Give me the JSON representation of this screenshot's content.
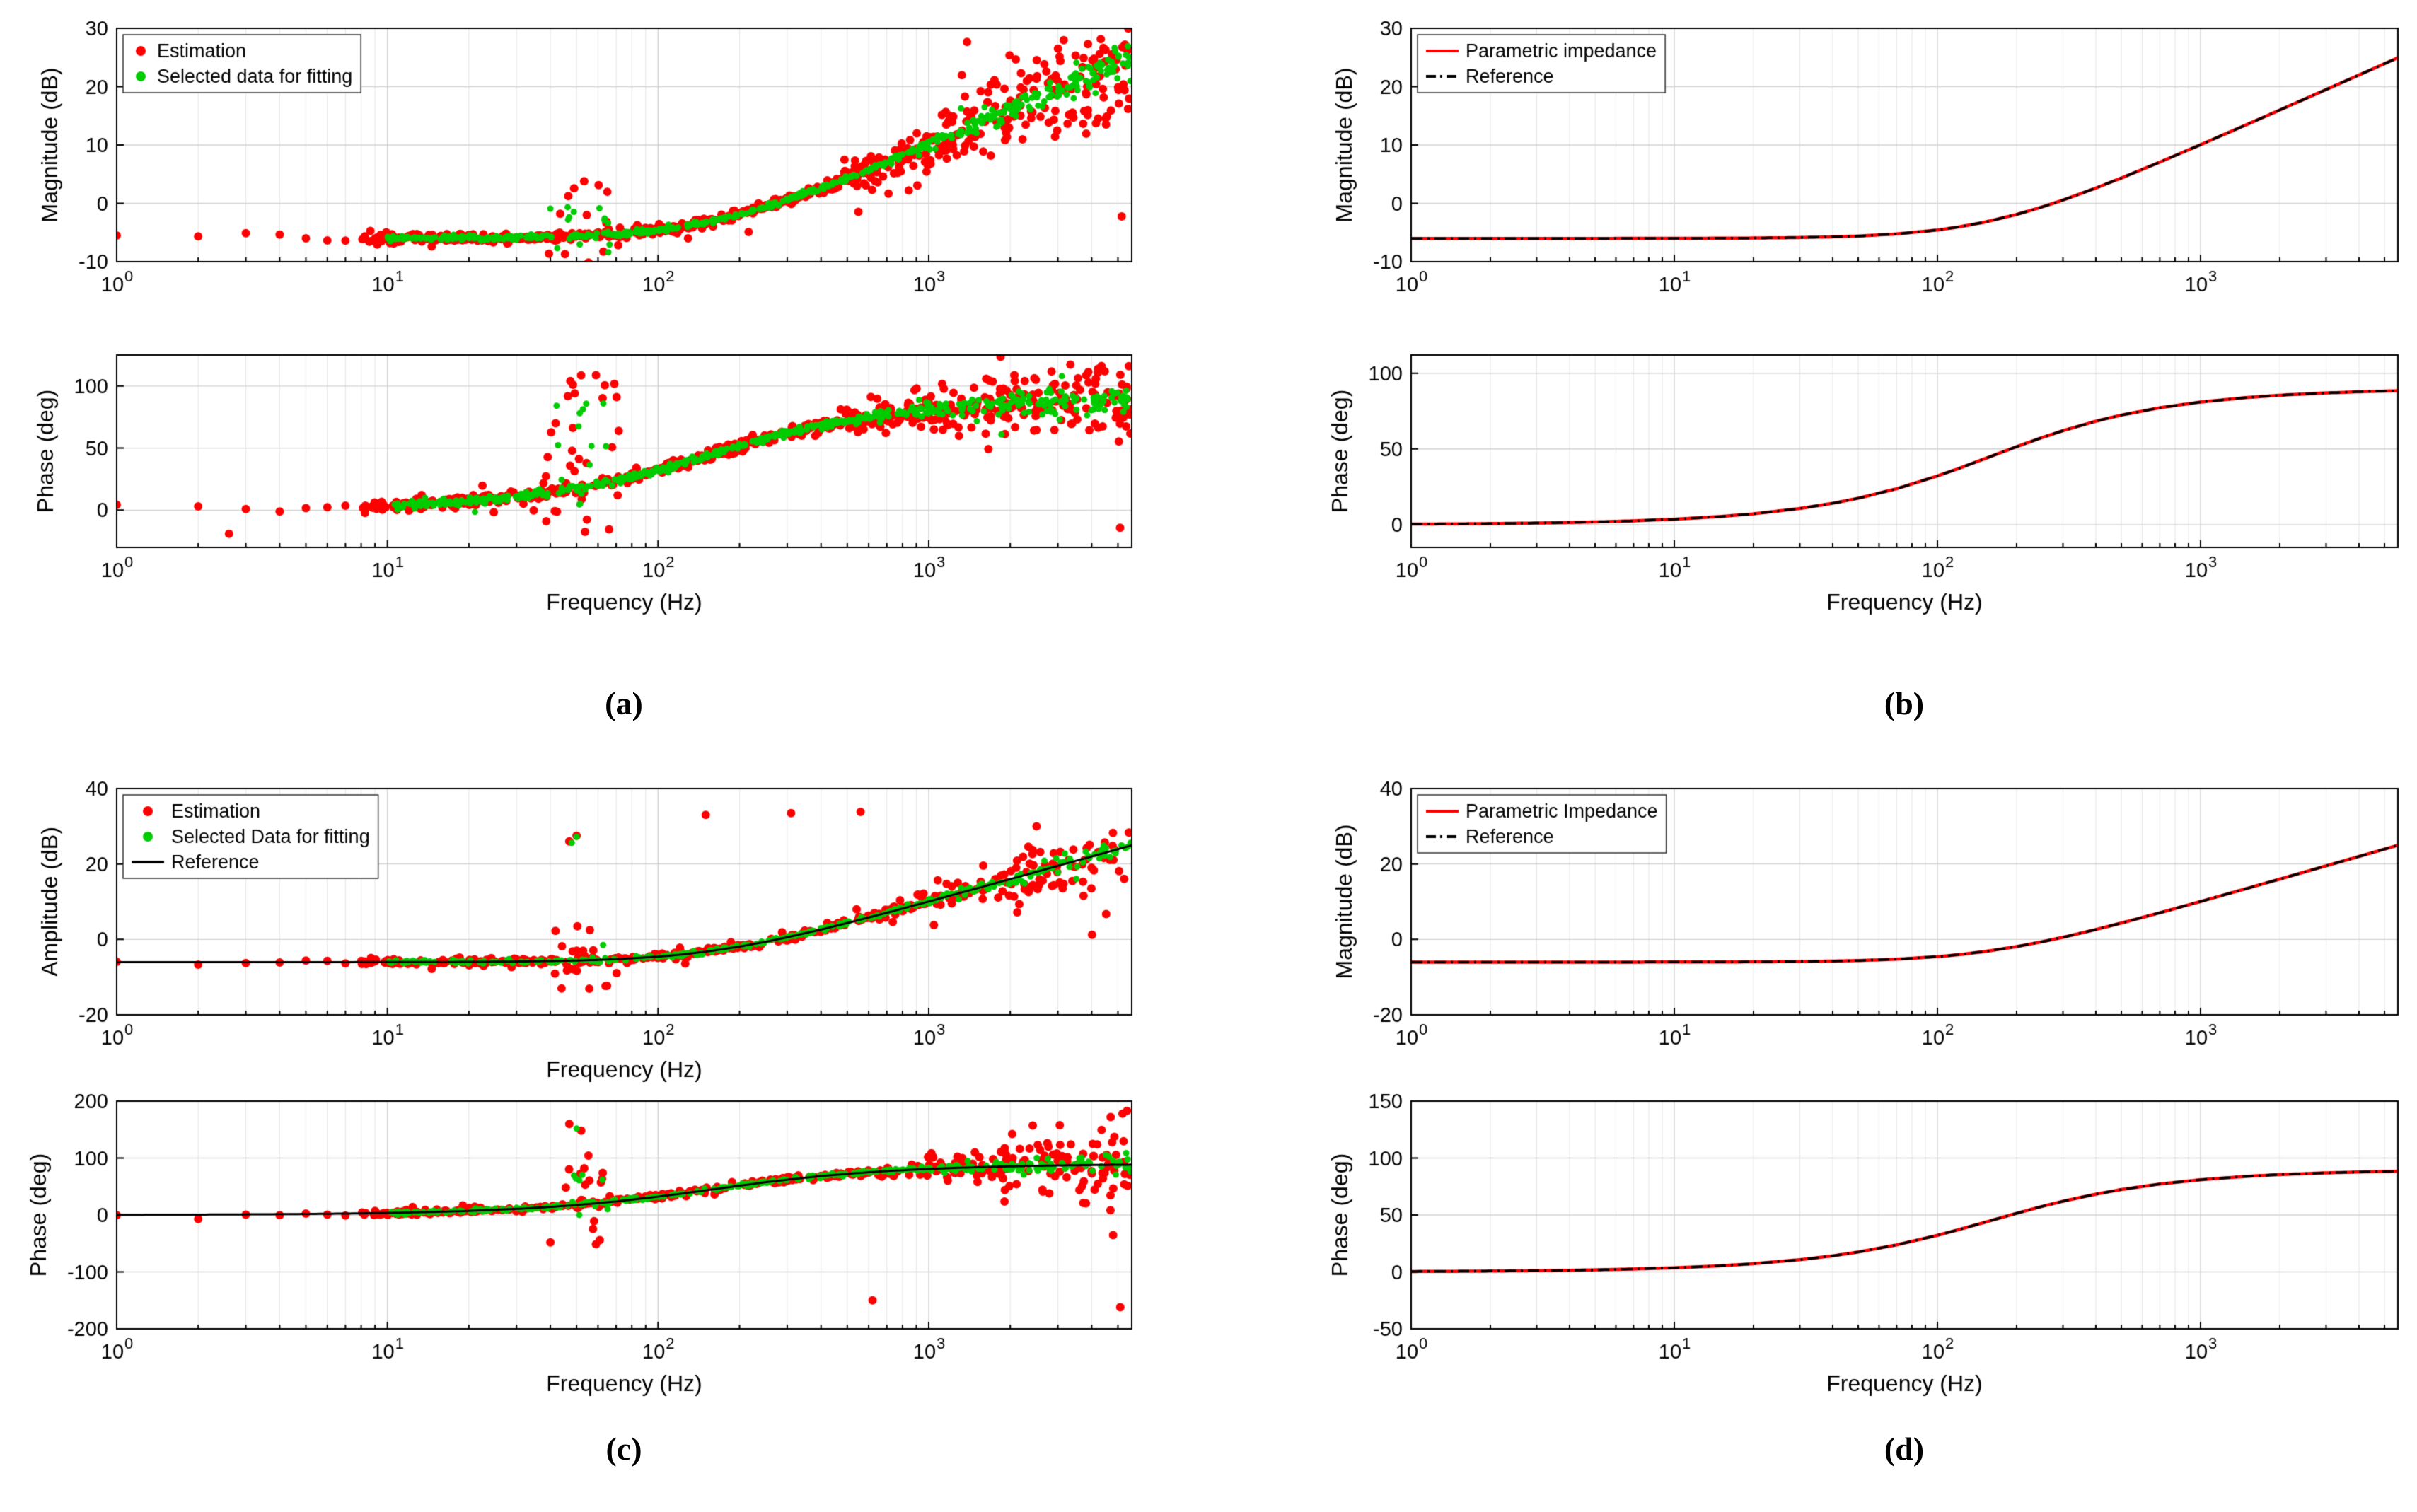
{
  "style": {
    "background": "#ffffff",
    "axis_color": "#000000",
    "grid_major": "#d2d2d2",
    "grid_minor": "#e8e8e8",
    "estimation_color": "#ff0000",
    "selected_color": "#00cc00",
    "reference_color": "#000000"
  },
  "axis": {
    "x_log_min": 0,
    "x_log_max": 3.75,
    "x_decade_exponents": [
      0,
      1,
      2,
      3
    ],
    "x_tick_base": "10"
  },
  "reference": {
    "f": [
      1,
      1.5,
      2,
      3,
      4,
      5,
      7,
      10,
      15,
      20,
      30,
      40,
      50,
      70,
      100,
      120,
      150,
      200,
      250,
      300,
      400,
      500,
      700,
      1000,
      1500,
      2000,
      3000,
      4000,
      5000,
      5623
    ],
    "mag_db": [
      -6.02,
      -6.02,
      -6.02,
      -6.02,
      -6.02,
      -6.02,
      -6.01,
      -6.0,
      -5.98,
      -5.95,
      -5.87,
      -5.75,
      -5.61,
      -5.25,
      -4.58,
      -4.07,
      -3.26,
      -1.91,
      -0.62,
      0.56,
      2.62,
      4.34,
      7.06,
      10.05,
      13.51,
      15.99,
      19.5,
      21.99,
      23.93,
      24.95
    ],
    "phase_deg": [
      0.36,
      0.54,
      0.72,
      1.08,
      1.44,
      1.8,
      2.52,
      3.6,
      5.38,
      7.16,
      10.67,
      14.11,
      17.44,
      23.74,
      32.14,
      37.01,
      43.3,
      51.49,
      57.52,
      62.05,
      68.3,
      72.34,
      77.19,
      80.96,
      83.94,
      85.45,
      86.96,
      87.72,
      88.18,
      88.38
    ]
  },
  "chart_data": [
    {
      "id": "a",
      "caption": "(a)",
      "type": "scatter",
      "subplots": [
        {
          "kind": "scatter",
          "ylabel": "Magnitude (dB)",
          "xlabel": null,
          "ylim": [
            -10,
            30
          ],
          "yticks": [
            -10,
            0,
            10,
            20,
            30
          ],
          "curve": "mag_db",
          "legend": [
            {
              "label": "Estimation",
              "marker": "dot",
              "color": "#ff0000"
            },
            {
              "label": "Selected data for fitting",
              "marker": "dot",
              "color": "#00cc00"
            }
          ],
          "series": [
            {
              "role": "estimation",
              "marker": "dot",
              "color": "#ff0000",
              "r": 6,
              "seed": 101,
              "n": 680,
              "fmin": 8,
              "fmax": 5600,
              "noise": {
                "base": 0.4,
                "hf_start": 2.55,
                "hf_slope": 4.2,
                "tail_prob": 0.05,
                "tail_mult": 3.5
              },
              "cluster": {
                "fmin": 38,
                "fmax": 72,
                "prob": 0.33,
                "lo": -5,
                "hi": 9
              },
              "extra_f": [
                1,
                2,
                3,
                4,
                5,
                6,
                7,
                9
              ],
              "outliers": []
            },
            {
              "role": "selected",
              "marker": "dot",
              "color": "#00cc00",
              "r": 4.5,
              "seed": 102,
              "n": 540,
              "fmin": 10,
              "fmax": 5600,
              "noise": {
                "base": 0.2,
                "hf_start": 2.75,
                "hf_slope": 1.5,
                "tail_prob": 0.03,
                "tail_mult": 3
              },
              "cluster": {
                "fmin": 40,
                "fmax": 70,
                "prob": 0.3,
                "lo": -4,
                "hi": 7
              },
              "extra_f": [],
              "outliers": []
            }
          ]
        },
        {
          "kind": "scatter",
          "ylabel": "Phase (deg)",
          "xlabel": "Frequency (Hz)",
          "ylim": [
            -30,
            125
          ],
          "yticks": [
            0,
            50,
            100
          ],
          "curve": "phase_deg",
          "legend": null,
          "series": [
            {
              "role": "estimation",
              "marker": "dot",
              "color": "#ff0000",
              "r": 6,
              "seed": 103,
              "n": 680,
              "fmin": 8,
              "fmax": 5600,
              "noise": {
                "base": 2.2,
                "hf_start": 2.55,
                "hf_slope": 14,
                "tail_prob": 0.05,
                "tail_mult": 2.5
              },
              "cluster": {
                "fmin": 38,
                "fmax": 72,
                "prob": 0.33,
                "lo": -40,
                "hi": 90
              },
              "extra_f": [
                1,
                2,
                3,
                4,
                5,
                6,
                7,
                9
              ],
              "outliers": [
                [
                  2.6,
                  -19
                ]
              ]
            },
            {
              "role": "selected",
              "marker": "dot",
              "color": "#00cc00",
              "r": 4.5,
              "seed": 104,
              "n": 540,
              "fmin": 10,
              "fmax": 5600,
              "noise": {
                "base": 1.4,
                "hf_start": 2.75,
                "hf_slope": 5,
                "tail_prob": 0.03,
                "tail_mult": 2.5
              },
              "cluster": {
                "fmin": 40,
                "fmax": 70,
                "prob": 0.3,
                "lo": -30,
                "hi": 85
              },
              "extra_f": [],
              "outliers": []
            }
          ]
        }
      ]
    },
    {
      "id": "b",
      "caption": "(b)",
      "type": "line",
      "subplots": [
        {
          "kind": "line",
          "ylabel": "Magnitude (dB)",
          "xlabel": null,
          "ylim": [
            -10,
            30
          ],
          "yticks": [
            -10,
            0,
            10,
            20,
            30
          ],
          "curve": "mag_db",
          "legend": [
            {
              "label": "Parametric impedance",
              "marker": "line",
              "color": "#ff0000"
            },
            {
              "label": "Reference",
              "marker": "dashdot",
              "color": "#000000"
            }
          ],
          "series": [
            {
              "role": "parametric-impedance",
              "marker": "line",
              "color": "#ff0000",
              "width": 4.5
            },
            {
              "role": "reference",
              "marker": "dashdot",
              "color": "#000000",
              "width": 3.5
            }
          ]
        },
        {
          "kind": "line",
          "ylabel": "Phase (deg)",
          "xlabel": "Frequency (Hz)",
          "ylim": [
            -15,
            112
          ],
          "yticks": [
            0,
            50,
            100
          ],
          "curve": "phase_deg",
          "legend": null,
          "series": [
            {
              "role": "parametric-impedance",
              "marker": "line",
              "color": "#ff0000",
              "width": 4.5
            },
            {
              "role": "reference",
              "marker": "dashdot",
              "color": "#000000",
              "width": 3.5
            }
          ]
        }
      ]
    },
    {
      "id": "c",
      "caption": "(c)",
      "type": "scatter+line",
      "subplots": [
        {
          "kind": "scatter+line",
          "ylabel": "Amplitude (dB)",
          "xlabel": "Frequency (Hz)",
          "ylim": [
            -20,
            40
          ],
          "yticks": [
            -20,
            0,
            20,
            40
          ],
          "curve": "mag_db",
          "legend": [
            {
              "label": "Estimation",
              "marker": "dot",
              "color": "#ff0000"
            },
            {
              "label": "Selected Data for fitting",
              "marker": "dot",
              "color": "#00cc00"
            },
            {
              "label": "Reference",
              "marker": "line",
              "color": "#000000"
            }
          ],
          "series": [
            {
              "role": "estimation",
              "marker": "dot",
              "color": "#ff0000",
              "r": 6,
              "seed": 201,
              "n": 420,
              "fmin": 8,
              "fmax": 5600,
              "noise": {
                "base": 0.5,
                "hf_start": 2.7,
                "hf_slope": 4.5,
                "tail_prob": 0.05,
                "tail_mult": 3
              },
              "cluster": {
                "fmin": 40,
                "fmax": 70,
                "prob": 0.35,
                "lo": -9,
                "hi": 9
              },
              "extra_f": [
                1,
                2,
                3,
                4,
                5,
                6,
                7,
                9
              ],
              "outliers": [
                [
                  150,
                  33
                ],
                [
                  310,
                  33.5
                ],
                [
                  560,
                  33.8
                ],
                [
                  47,
                  26
                ],
                [
                  50,
                  27.5
                ],
                [
                  44,
                  -13
                ]
              ]
            },
            {
              "role": "selected",
              "marker": "dot",
              "color": "#00cc00",
              "r": 4.5,
              "seed": 202,
              "n": 320,
              "fmin": 10,
              "fmax": 5600,
              "noise": {
                "base": 0.25,
                "hf_start": 2.85,
                "hf_slope": 1.5,
                "tail_prob": 0.03,
                "tail_mult": 2.5
              },
              "cluster": {
                "fmin": 42,
                "fmax": 68,
                "prob": 0.3,
                "lo": -7,
                "hi": 8
              },
              "extra_f": [],
              "outliers": [
                [
                  50,
                  27.2
                ],
                [
                  48,
                  25.6
                ]
              ]
            },
            {
              "role": "reference",
              "marker": "line",
              "color": "#000000",
              "width": 3
            }
          ]
        },
        {
          "kind": "scatter+line",
          "ylabel": "Phase (deg)",
          "xlabel": "Frequency (Hz)",
          "ylim": [
            -200,
            200
          ],
          "yticks": [
            -200,
            -100,
            0,
            100,
            200
          ],
          "curve": "phase_deg",
          "legend": null,
          "series": [
            {
              "role": "estimation",
              "marker": "dot",
              "color": "#ff0000",
              "r": 6,
              "seed": 203,
              "n": 420,
              "fmin": 8,
              "fmax": 5600,
              "noise": {
                "base": 2.5,
                "hf_start": 2.8,
                "hf_slope": 40,
                "tail_prob": 0.05,
                "tail_mult": 2.5
              },
              "cluster": {
                "fmin": 40,
                "fmax": 70,
                "prob": 0.35,
                "lo": -80,
                "hi": 100
              },
              "extra_f": [
                1,
                2,
                3,
                4,
                5,
                6,
                7,
                9
              ],
              "outliers": [
                [
                  47,
                  160
                ],
                [
                  52,
                  148
                ],
                [
                  620,
                  -150
                ],
                [
                  4700,
                  172
                ],
                [
                  5100,
                  -162
                ],
                [
                  5400,
                  183
                ],
                [
                  5200,
                  178
                ]
              ]
            },
            {
              "role": "selected",
              "marker": "dot",
              "color": "#00cc00",
              "r": 4.5,
              "seed": 204,
              "n": 320,
              "fmin": 10,
              "fmax": 5600,
              "noise": {
                "base": 1.6,
                "hf_start": 2.9,
                "hf_slope": 10,
                "tail_prob": 0.03,
                "tail_mult": 2
              },
              "cluster": {
                "fmin": 42,
                "fmax": 68,
                "prob": 0.3,
                "lo": -50,
                "hi": 90
              },
              "extra_f": [],
              "outliers": [
                [
                  50,
                  152
                ]
              ]
            },
            {
              "role": "reference",
              "marker": "line",
              "color": "#000000",
              "width": 3
            }
          ]
        }
      ]
    },
    {
      "id": "d",
      "caption": "(d)",
      "type": "line",
      "subplots": [
        {
          "kind": "line",
          "ylabel": "Magnitude (dB)",
          "xlabel": null,
          "ylim": [
            -20,
            40
          ],
          "yticks": [
            -20,
            0,
            20,
            40
          ],
          "curve": "mag_db",
          "legend": [
            {
              "label": "Parametric Impedance",
              "marker": "line",
              "color": "#ff0000"
            },
            {
              "label": "Reference",
              "marker": "dashdot",
              "color": "#000000"
            }
          ],
          "series": [
            {
              "role": "parametric-impedance",
              "marker": "line",
              "color": "#ff0000",
              "width": 4.5
            },
            {
              "role": "reference",
              "marker": "dashdot",
              "color": "#000000",
              "width": 3.5
            }
          ]
        },
        {
          "kind": "line",
          "ylabel": "Phase (deg)",
          "xlabel": "Frequency (Hz)",
          "ylim": [
            -50,
            150
          ],
          "yticks": [
            -50,
            0,
            50,
            100,
            150
          ],
          "curve": "phase_deg",
          "legend": null,
          "series": [
            {
              "role": "parametric-impedance",
              "marker": "line",
              "color": "#ff0000",
              "width": 4.5
            },
            {
              "role": "reference",
              "marker": "dashdot",
              "color": "#000000",
              "width": 3.5
            }
          ]
        }
      ]
    }
  ]
}
